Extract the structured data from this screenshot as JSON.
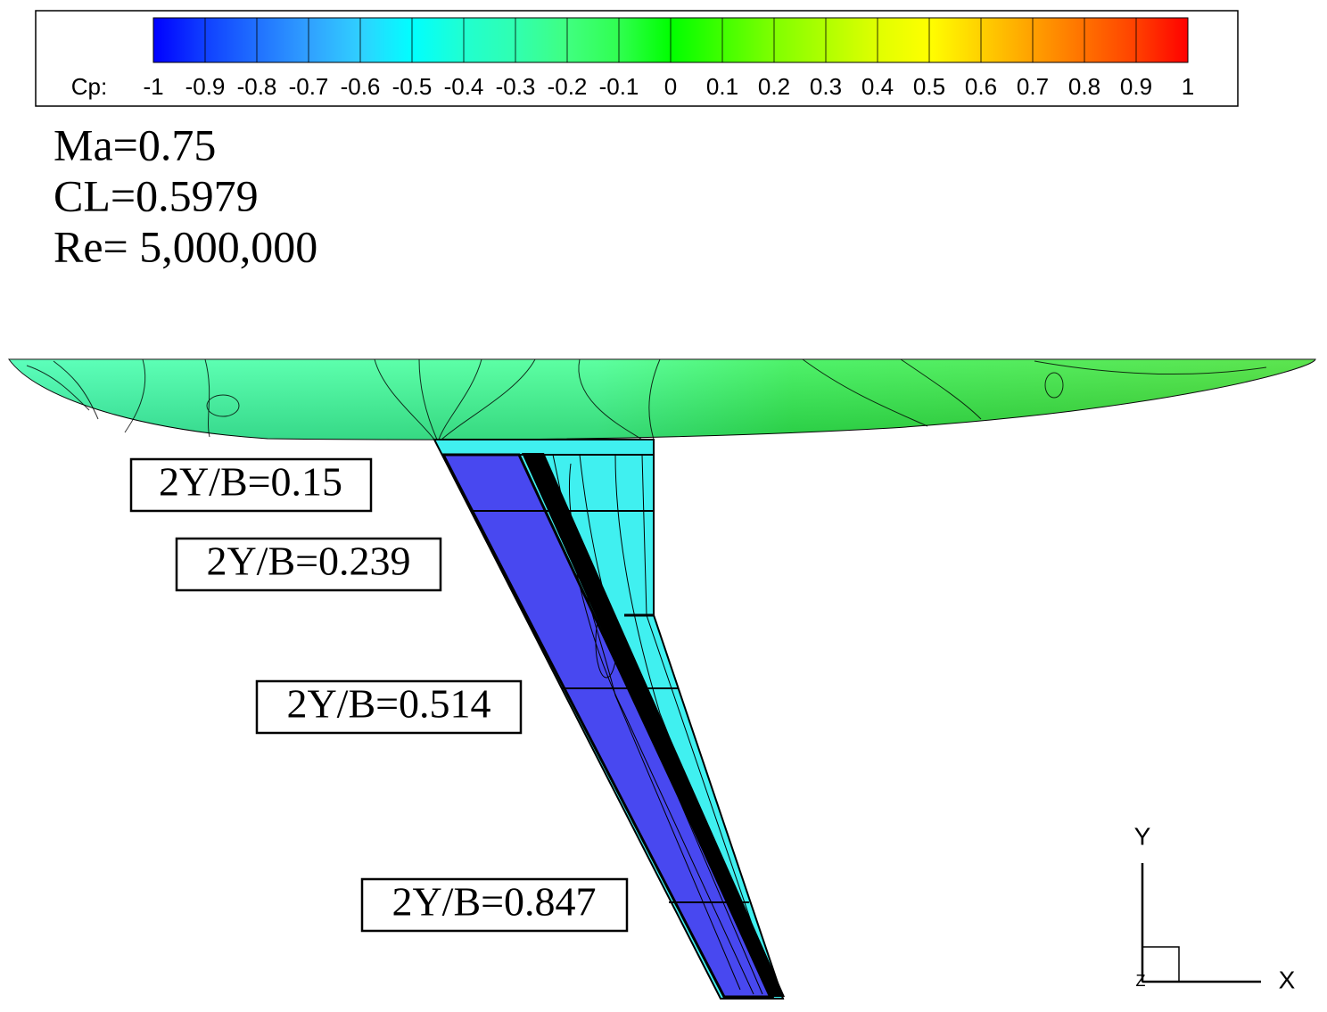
{
  "colorbar": {
    "label": "Cp:",
    "ticks": [
      -1,
      -0.9,
      -0.8,
      -0.7,
      -0.6,
      -0.5,
      -0.4,
      -0.3,
      -0.2,
      -0.1,
      0,
      0.1,
      0.2,
      0.3,
      0.4,
      0.5,
      0.6,
      0.7,
      0.8,
      0.9,
      1
    ],
    "colors": [
      "#0000ff",
      "#1040ff",
      "#2070ff",
      "#30a0ff",
      "#30d0ff",
      "#00ffff",
      "#20ffd0",
      "#30ffb0",
      "#40ff80",
      "#30ff50",
      "#00ff00",
      "#40ff00",
      "#80ff00",
      "#b0ff00",
      "#e0ff00",
      "#ffff00",
      "#ffd000",
      "#ffa000",
      "#ff7000",
      "#ff4000",
      "#ff0000"
    ]
  },
  "annotations": [
    "Ma=0.75",
    "CL=0.5979",
    "Re= 5,000,000"
  ],
  "sections": [
    "2Y/B=0.15",
    "2Y/B=0.239",
    "2Y/B=0.514",
    "2Y/B=0.847"
  ],
  "axes": {
    "x": "X",
    "y": "Y",
    "z": "Z"
  }
}
